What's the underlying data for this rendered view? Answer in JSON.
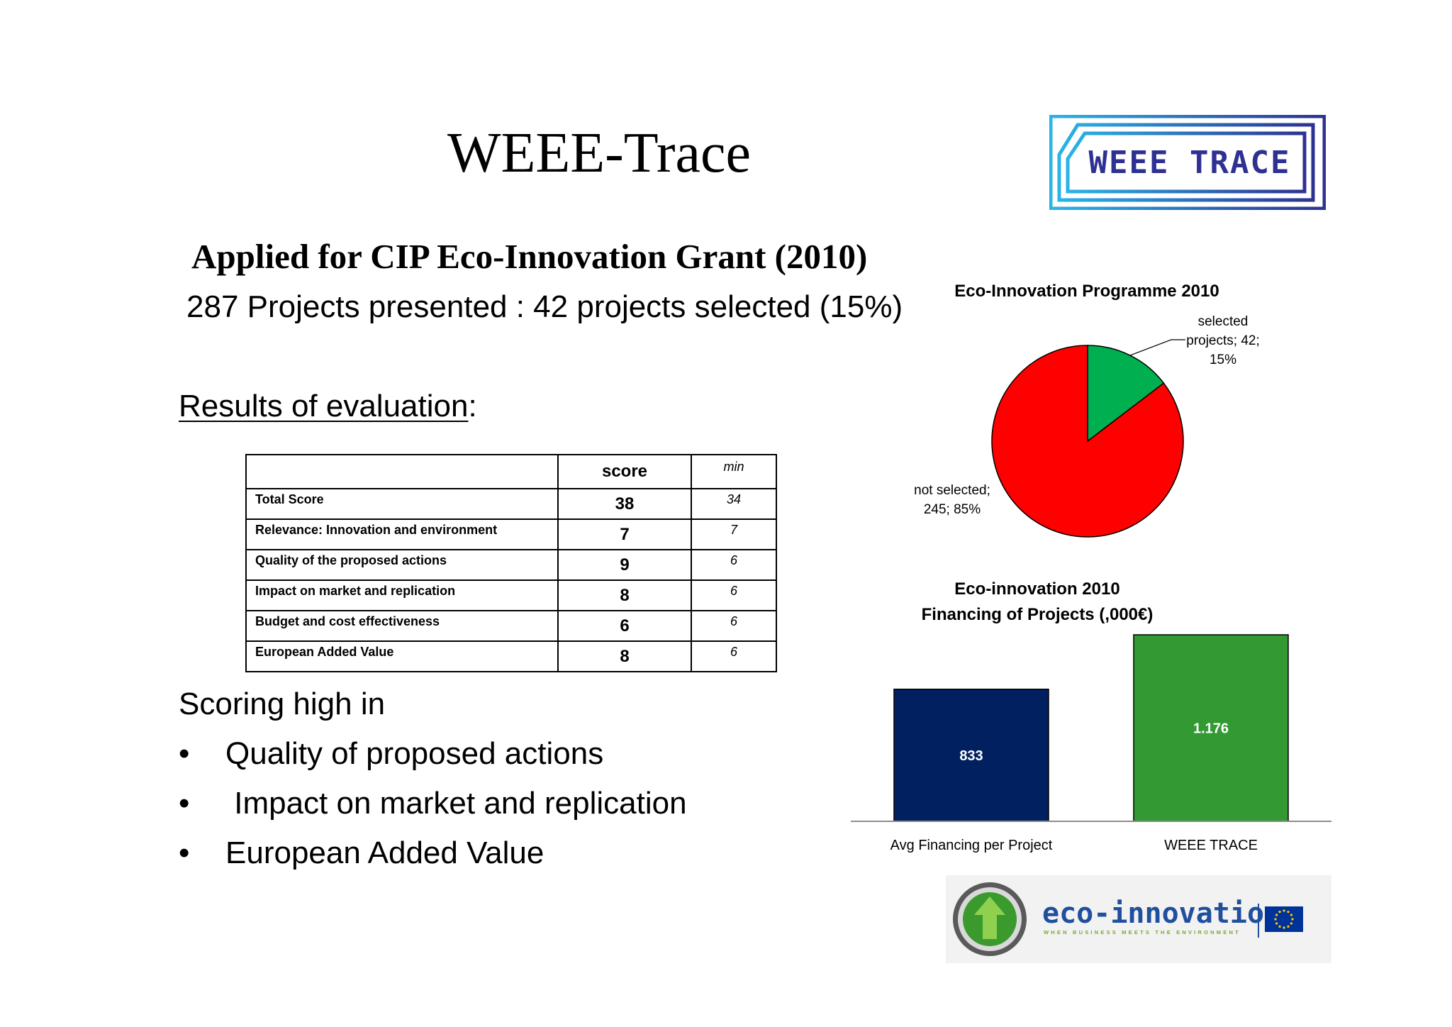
{
  "title": "WEEE-Trace",
  "logo_text": "WEEE TRACE",
  "subtitle": "Applied for CIP Eco-Innovation Grant (2010)",
  "summary": "287 Projects presented : 42  projects selected (15%)",
  "results_heading": "Results of evaluation",
  "results_colon": ":",
  "table": {
    "headers": [
      "",
      "score",
      "min"
    ],
    "rows": [
      {
        "criterion": "Total Score",
        "score": "38",
        "min": "34"
      },
      {
        "criterion": "Relevance: Innovation and environment",
        "score": "7",
        "min": "7"
      },
      {
        "criterion": "Quality of the proposed actions",
        "score": "9",
        "min": "6"
      },
      {
        "criterion": "Impact on market and replication",
        "score": "8",
        "min": "6"
      },
      {
        "criterion": "Budget and cost effectiveness",
        "score": "6",
        "min": "6"
      },
      {
        "criterion": "European Added Value",
        "score": "8",
        "min": "6"
      }
    ]
  },
  "scoring": {
    "heading": "Scoring high in",
    "bullet_char": "•",
    "items": [
      "Quality of proposed actions",
      " Impact on market and replication",
      "European Added Value"
    ]
  },
  "chart_data": [
    {
      "type": "pie",
      "title": "Eco-Innovation Programme 2010",
      "slices": [
        {
          "label": "selected projects",
          "value": 42,
          "percent": "15%",
          "color": "#00b050",
          "label_lines": [
            "selected",
            "projects; 42;",
            "15%"
          ]
        },
        {
          "label": "not selected",
          "value": 245,
          "percent": "85%",
          "color": "#ff0000",
          "label_lines": [
            "not selected;",
            "245; 85%"
          ]
        }
      ]
    },
    {
      "type": "bar",
      "title_lines": [
        "Eco-innovation 2010",
        "Financing of Projects (,000€)"
      ],
      "categories": [
        "Avg Financing per Project",
        "WEEE TRACE"
      ],
      "values": [
        833,
        1176
      ],
      "value_labels": [
        "833",
        "1.176"
      ],
      "colors": [
        "#002060",
        "#339933"
      ],
      "ylim": [
        0,
        1400
      ]
    }
  ],
  "eco_logo": {
    "brand": "eco-innovation",
    "tagline": "WHEN BUSINESS MEETS THE ENVIRONMENT",
    "colors": {
      "brand_text": "#1f4f9e",
      "tagline": "#7aa832",
      "eu_flag": "#003399",
      "eu_star": "#ffcc00",
      "arrow": "#3a9a2e"
    }
  },
  "colors": {
    "logo_outer": "#27a9e1",
    "logo_inner": "#2e3192",
    "logo_text": "#2e3192"
  }
}
